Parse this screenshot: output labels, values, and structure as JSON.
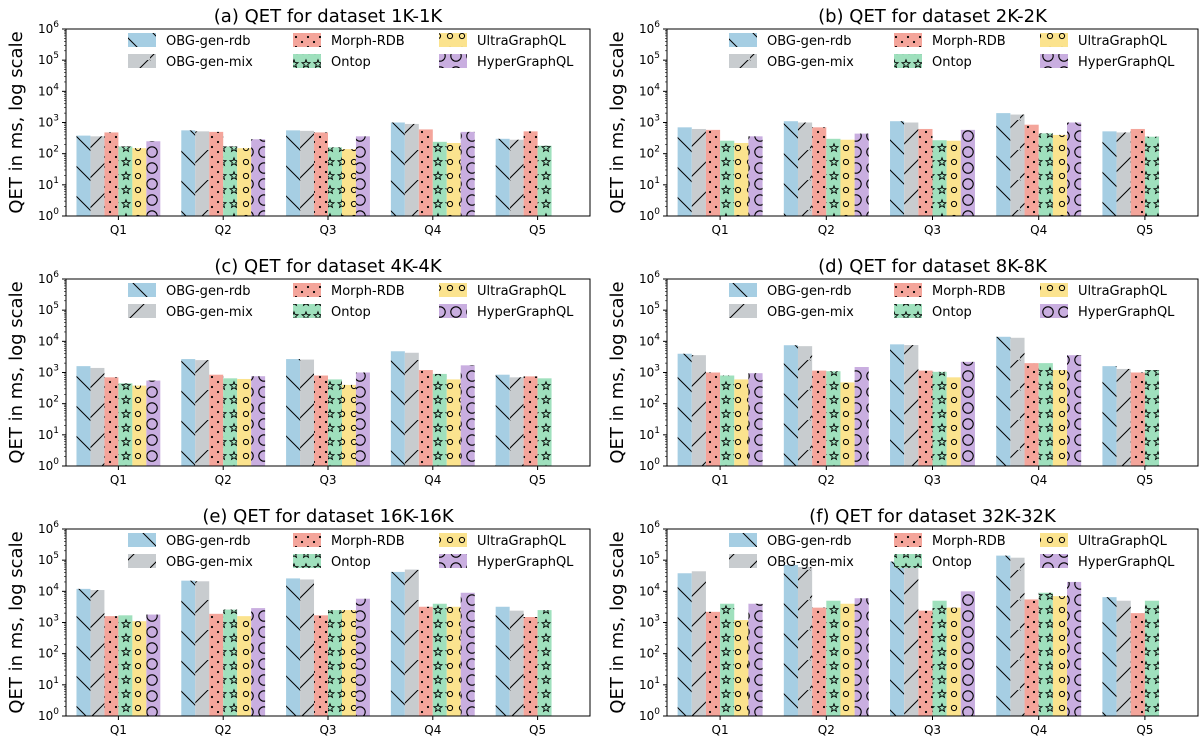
{
  "figure": {
    "y_label": "QET in ms, log scale"
  },
  "series_styles": [
    {
      "name": "OBG-gen-rdb",
      "color": "#a6cee3",
      "hatch": "backslash"
    },
    {
      "name": "OBG-gen-mix",
      "color": "#c8cccf",
      "hatch": "slash"
    },
    {
      "name": "Morph-RDB",
      "color": "#f4a59b",
      "hatch": "dots"
    },
    {
      "name": "Ontop",
      "color": "#9fe0bd",
      "hatch": "stars"
    },
    {
      "name": "UltraGraphQL",
      "color": "#fbe38e",
      "hatch": "small-circles"
    },
    {
      "name": "HyperGraphQL",
      "color": "#c9aee0",
      "hatch": "big-circles"
    }
  ],
  "chart_data": [
    {
      "type": "bar",
      "title": "(a) QET for dataset 1K-1K",
      "categories": [
        "Q1",
        "Q2",
        "Q3",
        "Q4",
        "Q5"
      ],
      "ylabel": "QET in ms, log scale",
      "yscale": "log",
      "ylim": [
        1,
        1000000
      ],
      "y_tick_labels": [
        {
          "base": "10",
          "exp": "0"
        },
        {
          "base": "10",
          "exp": "1"
        },
        {
          "base": "10",
          "exp": "2"
        },
        {
          "base": "10",
          "exp": "3"
        },
        {
          "base": "10",
          "exp": "4"
        },
        {
          "base": "10",
          "exp": "5"
        },
        {
          "base": "10",
          "exp": "6"
        }
      ],
      "legend_position": "top-right",
      "series": [
        {
          "name": "OBG-gen-rdb",
          "values": [
            380,
            560,
            560,
            1000,
            300
          ]
        },
        {
          "name": "OBG-gen-mix",
          "values": [
            360,
            520,
            540,
            900,
            280
          ]
        },
        {
          "name": "Morph-RDB",
          "values": [
            480,
            500,
            480,
            600,
            520
          ]
        },
        {
          "name": "Ontop",
          "values": [
            170,
            170,
            160,
            240,
            180
          ]
        },
        {
          "name": "UltraGraphQL",
          "values": [
            150,
            150,
            140,
            220,
            null
          ]
        },
        {
          "name": "HyperGraphQL",
          "values": [
            250,
            290,
            360,
            500,
            null
          ]
        }
      ]
    },
    {
      "type": "bar",
      "title": "(b) QET for dataset 2K-2K",
      "categories": [
        "Q1",
        "Q2",
        "Q3",
        "Q4",
        "Q5"
      ],
      "ylabel": "QET in ms, log scale",
      "yscale": "log",
      "ylim": [
        1,
        1000000
      ],
      "y_tick_labels": [
        {
          "base": "10",
          "exp": "0"
        },
        {
          "base": "10",
          "exp": "1"
        },
        {
          "base": "10",
          "exp": "2"
        },
        {
          "base": "10",
          "exp": "3"
        },
        {
          "base": "10",
          "exp": "4"
        },
        {
          "base": "10",
          "exp": "5"
        },
        {
          "base": "10",
          "exp": "6"
        }
      ],
      "legend_position": "top-right",
      "series": [
        {
          "name": "OBG-gen-rdb",
          "values": [
            700,
            1100,
            1100,
            2000,
            520
          ]
        },
        {
          "name": "OBG-gen-mix",
          "values": [
            620,
            1000,
            1000,
            1800,
            480
          ]
        },
        {
          "name": "Morph-RDB",
          "values": [
            580,
            700,
            620,
            850,
            620
          ]
        },
        {
          "name": "Ontop",
          "values": [
            260,
            300,
            270,
            450,
            350
          ]
        },
        {
          "name": "UltraGraphQL",
          "values": [
            220,
            280,
            260,
            400,
            null
          ]
        },
        {
          "name": "HyperGraphQL",
          "values": [
            360,
            440,
            580,
            1000,
            null
          ]
        }
      ]
    },
    {
      "type": "bar",
      "title": "(c) QET for dataset 4K-4K",
      "categories": [
        "Q1",
        "Q2",
        "Q3",
        "Q4",
        "Q5"
      ],
      "ylabel": "QET in ms, log scale",
      "yscale": "log",
      "ylim": [
        1,
        1000000
      ],
      "y_tick_labels": [
        {
          "base": "10",
          "exp": "0"
        },
        {
          "base": "10",
          "exp": "1"
        },
        {
          "base": "10",
          "exp": "2"
        },
        {
          "base": "10",
          "exp": "3"
        },
        {
          "base": "10",
          "exp": "4"
        },
        {
          "base": "10",
          "exp": "5"
        },
        {
          "base": "10",
          "exp": "6"
        }
      ],
      "legend_position": "top-right",
      "series": [
        {
          "name": "OBG-gen-rdb",
          "values": [
            1600,
            2700,
            2700,
            4800,
            850
          ]
        },
        {
          "name": "OBG-gen-mix",
          "values": [
            1400,
            2500,
            2600,
            4300,
            700
          ]
        },
        {
          "name": "Morph-RDB",
          "values": [
            700,
            850,
            800,
            1200,
            750
          ]
        },
        {
          "name": "Ontop",
          "values": [
            450,
            650,
            600,
            900,
            650
          ]
        },
        {
          "name": "UltraGraphQL",
          "values": [
            380,
            620,
            400,
            600,
            null
          ]
        },
        {
          "name": "HyperGraphQL",
          "values": [
            550,
            760,
            1000,
            1700,
            null
          ]
        }
      ]
    },
    {
      "type": "bar",
      "title": "(d) QET for dataset 8K-8K",
      "categories": [
        "Q1",
        "Q2",
        "Q3",
        "Q4",
        "Q5"
      ],
      "ylabel": "QET in ms, log scale",
      "yscale": "log",
      "ylim": [
        1,
        1000000
      ],
      "y_tick_labels": [
        {
          "base": "10",
          "exp": "0"
        },
        {
          "base": "10",
          "exp": "1"
        },
        {
          "base": "10",
          "exp": "2"
        },
        {
          "base": "10",
          "exp": "3"
        },
        {
          "base": "10",
          "exp": "4"
        },
        {
          "base": "10",
          "exp": "5"
        },
        {
          "base": "10",
          "exp": "6"
        }
      ],
      "legend_position": "top-right",
      "series": [
        {
          "name": "OBG-gen-rdb",
          "values": [
            4000,
            7500,
            8000,
            14000,
            1600
          ]
        },
        {
          "name": "OBG-gen-mix",
          "values": [
            3600,
            7000,
            7600,
            13000,
            1300
          ]
        },
        {
          "name": "Morph-RDB",
          "values": [
            1000,
            1150,
            1150,
            2000,
            1000
          ]
        },
        {
          "name": "Ontop",
          "values": [
            800,
            1100,
            1050,
            2000,
            1200
          ]
        },
        {
          "name": "UltraGraphQL",
          "values": [
            600,
            480,
            700,
            1200,
            null
          ]
        },
        {
          "name": "HyperGraphQL",
          "values": [
            950,
            1500,
            2200,
            3600,
            null
          ]
        }
      ]
    },
    {
      "type": "bar",
      "title": "(e) QET for dataset 16K-16K",
      "categories": [
        "Q1",
        "Q2",
        "Q3",
        "Q4",
        "Q5"
      ],
      "ylabel": "QET in ms, log scale",
      "yscale": "log",
      "ylim": [
        1,
        1000000
      ],
      "y_tick_labels": [
        {
          "base": "10",
          "exp": "0"
        },
        {
          "base": "10",
          "exp": "1"
        },
        {
          "base": "10",
          "exp": "2"
        },
        {
          "base": "10",
          "exp": "3"
        },
        {
          "base": "10",
          "exp": "4"
        },
        {
          "base": "10",
          "exp": "5"
        },
        {
          "base": "10",
          "exp": "6"
        }
      ],
      "legend_position": "top-right",
      "series": [
        {
          "name": "OBG-gen-rdb",
          "values": [
            12000,
            22000,
            26000,
            42000,
            3200
          ]
        },
        {
          "name": "OBG-gen-mix",
          "values": [
            11000,
            21000,
            24000,
            50000,
            2400
          ]
        },
        {
          "name": "Morph-RDB",
          "values": [
            1600,
            1900,
            1700,
            3200,
            1500
          ]
        },
        {
          "name": "Ontop",
          "values": [
            1700,
            2600,
            2500,
            4000,
            2500
          ]
        },
        {
          "name": "UltraGraphQL",
          "values": [
            1100,
            1600,
            2500,
            3200,
            null
          ]
        },
        {
          "name": "HyperGraphQL",
          "values": [
            1800,
            2900,
            5800,
            9000,
            null
          ]
        }
      ]
    },
    {
      "type": "bar",
      "title": "(f) QET for dataset 32K-32K",
      "categories": [
        "Q1",
        "Q2",
        "Q3",
        "Q4",
        "Q5"
      ],
      "ylabel": "QET in ms, log scale",
      "yscale": "log",
      "ylim": [
        1,
        1000000
      ],
      "y_tick_labels": [
        {
          "base": "10",
          "exp": "0"
        },
        {
          "base": "10",
          "exp": "1"
        },
        {
          "base": "10",
          "exp": "2"
        },
        {
          "base": "10",
          "exp": "3"
        },
        {
          "base": "10",
          "exp": "4"
        },
        {
          "base": "10",
          "exp": "5"
        },
        {
          "base": "10",
          "exp": "6"
        }
      ],
      "legend_position": "top-right",
      "series": [
        {
          "name": "OBG-gen-rdb",
          "values": [
            38000,
            70000,
            90000,
            140000,
            6500
          ]
        },
        {
          "name": "OBG-gen-mix",
          "values": [
            44000,
            60000,
            80000,
            120000,
            5000
          ]
        },
        {
          "name": "Morph-RDB",
          "values": [
            2200,
            3000,
            2400,
            5500,
            2000
          ]
        },
        {
          "name": "Ontop",
          "values": [
            4000,
            5000,
            5000,
            9000,
            5000
          ]
        },
        {
          "name": "UltraGraphQL",
          "values": [
            1200,
            4000,
            3000,
            7000,
            null
          ]
        },
        {
          "name": "HyperGraphQL",
          "values": [
            4000,
            6000,
            10000,
            20000,
            null
          ]
        }
      ]
    }
  ]
}
